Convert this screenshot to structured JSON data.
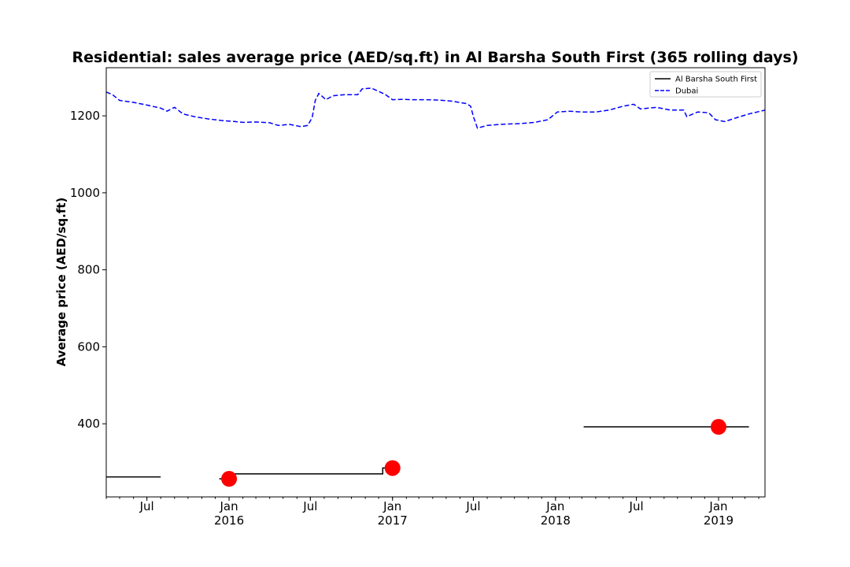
{
  "chart_data": {
    "type": "line",
    "title": "Residential: sales average price (AED/sq.ft) in Al Barsha South First (365 rolling days)",
    "xlabel": "",
    "ylabel": "Average price (AED/sq.ft)",
    "xlim": [
      "2015-04-01",
      "2019-04-15"
    ],
    "ylim": [
      210,
      1325
    ],
    "yticks": [
      400,
      600,
      800,
      1000,
      1200
    ],
    "xticks": [
      {
        "date": "2015-07-01",
        "label": "Jul",
        "sublabel": ""
      },
      {
        "date": "2016-01-01",
        "label": "Jan",
        "sublabel": "2016"
      },
      {
        "date": "2016-07-01",
        "label": "Jul",
        "sublabel": ""
      },
      {
        "date": "2017-01-01",
        "label": "Jan",
        "sublabel": "2017"
      },
      {
        "date": "2017-07-01",
        "label": "Jul",
        "sublabel": ""
      },
      {
        "date": "2018-01-01",
        "label": "Jan",
        "sublabel": "2018"
      },
      {
        "date": "2018-07-01",
        "label": "Jul",
        "sublabel": ""
      },
      {
        "date": "2019-01-01",
        "label": "Jan",
        "sublabel": "2019"
      }
    ],
    "grid": false,
    "legend_position": "top-right",
    "series": [
      {
        "name": "Al Barsha South First",
        "color": "#000000",
        "style": "solid",
        "segments": [
          [
            [
              "2015-04-01",
              262
            ],
            [
              "2015-08-01",
              262
            ]
          ],
          [
            [
              "2015-12-10",
              257
            ],
            [
              "2016-01-05",
              257
            ],
            [
              "2016-01-05",
              270
            ],
            [
              "2016-12-10",
              270
            ],
            [
              "2016-12-10",
              285
            ],
            [
              "2016-12-31",
              285
            ]
          ],
          [
            [
              "2018-03-05",
              392
            ],
            [
              "2019-03-10",
              392
            ]
          ]
        ]
      },
      {
        "name": "Dubai",
        "color": "#0000ff",
        "style": "dashed",
        "points": [
          [
            "2015-04-01",
            1262
          ],
          [
            "2015-04-15",
            1255
          ],
          [
            "2015-05-01",
            1240
          ],
          [
            "2015-06-01",
            1235
          ],
          [
            "2015-07-01",
            1228
          ],
          [
            "2015-08-01",
            1220
          ],
          [
            "2015-08-15",
            1212
          ],
          [
            "2015-09-01",
            1222
          ],
          [
            "2015-09-20",
            1205
          ],
          [
            "2015-10-15",
            1198
          ],
          [
            "2015-11-15",
            1192
          ],
          [
            "2015-12-15",
            1188
          ],
          [
            "2016-01-15",
            1185
          ],
          [
            "2016-02-01",
            1183
          ],
          [
            "2016-03-01",
            1184
          ],
          [
            "2016-04-01",
            1182
          ],
          [
            "2016-04-20",
            1175
          ],
          [
            "2016-05-15",
            1178
          ],
          [
            "2016-06-10",
            1172
          ],
          [
            "2016-06-25",
            1175
          ],
          [
            "2016-07-05",
            1195
          ],
          [
            "2016-07-12",
            1240
          ],
          [
            "2016-07-20",
            1258
          ],
          [
            "2016-08-05",
            1242
          ],
          [
            "2016-08-20",
            1252
          ],
          [
            "2016-09-15",
            1255
          ],
          [
            "2016-10-15",
            1255
          ],
          [
            "2016-10-25",
            1270
          ],
          [
            "2016-11-15",
            1272
          ],
          [
            "2016-12-15",
            1256
          ],
          [
            "2017-01-01",
            1242
          ],
          [
            "2017-01-25",
            1243
          ],
          [
            "2017-02-15",
            1242
          ],
          [
            "2017-03-15",
            1242
          ],
          [
            "2017-04-15",
            1241
          ],
          [
            "2017-05-15",
            1238
          ],
          [
            "2017-06-15",
            1232
          ],
          [
            "2017-06-25",
            1225
          ],
          [
            "2017-07-01",
            1198
          ],
          [
            "2017-07-10",
            1168
          ],
          [
            "2017-08-01",
            1175
          ],
          [
            "2017-09-01",
            1178
          ],
          [
            "2017-10-15",
            1180
          ],
          [
            "2017-11-15",
            1183
          ],
          [
            "2017-12-15",
            1190
          ],
          [
            "2018-01-05",
            1210
          ],
          [
            "2018-02-01",
            1212
          ],
          [
            "2018-03-01",
            1210
          ],
          [
            "2018-04-01",
            1210
          ],
          [
            "2018-05-01",
            1215
          ],
          [
            "2018-06-01",
            1225
          ],
          [
            "2018-06-25",
            1230
          ],
          [
            "2018-07-10",
            1218
          ],
          [
            "2018-08-15",
            1222
          ],
          [
            "2018-09-15",
            1215
          ],
          [
            "2018-10-15",
            1215
          ],
          [
            "2018-10-22",
            1198
          ],
          [
            "2018-11-15",
            1210
          ],
          [
            "2018-12-10",
            1208
          ],
          [
            "2018-12-25",
            1190
          ],
          [
            "2019-01-15",
            1185
          ],
          [
            "2019-02-10",
            1195
          ],
          [
            "2019-03-10",
            1205
          ],
          [
            "2019-04-15",
            1215
          ]
        ]
      }
    ],
    "markers": [
      {
        "date": "2016-01-01",
        "value": 257,
        "color": "#ff0000"
      },
      {
        "date": "2017-01-01",
        "value": 285,
        "color": "#ff0000"
      },
      {
        "date": "2019-01-01",
        "value": 392,
        "color": "#ff0000"
      }
    ]
  }
}
